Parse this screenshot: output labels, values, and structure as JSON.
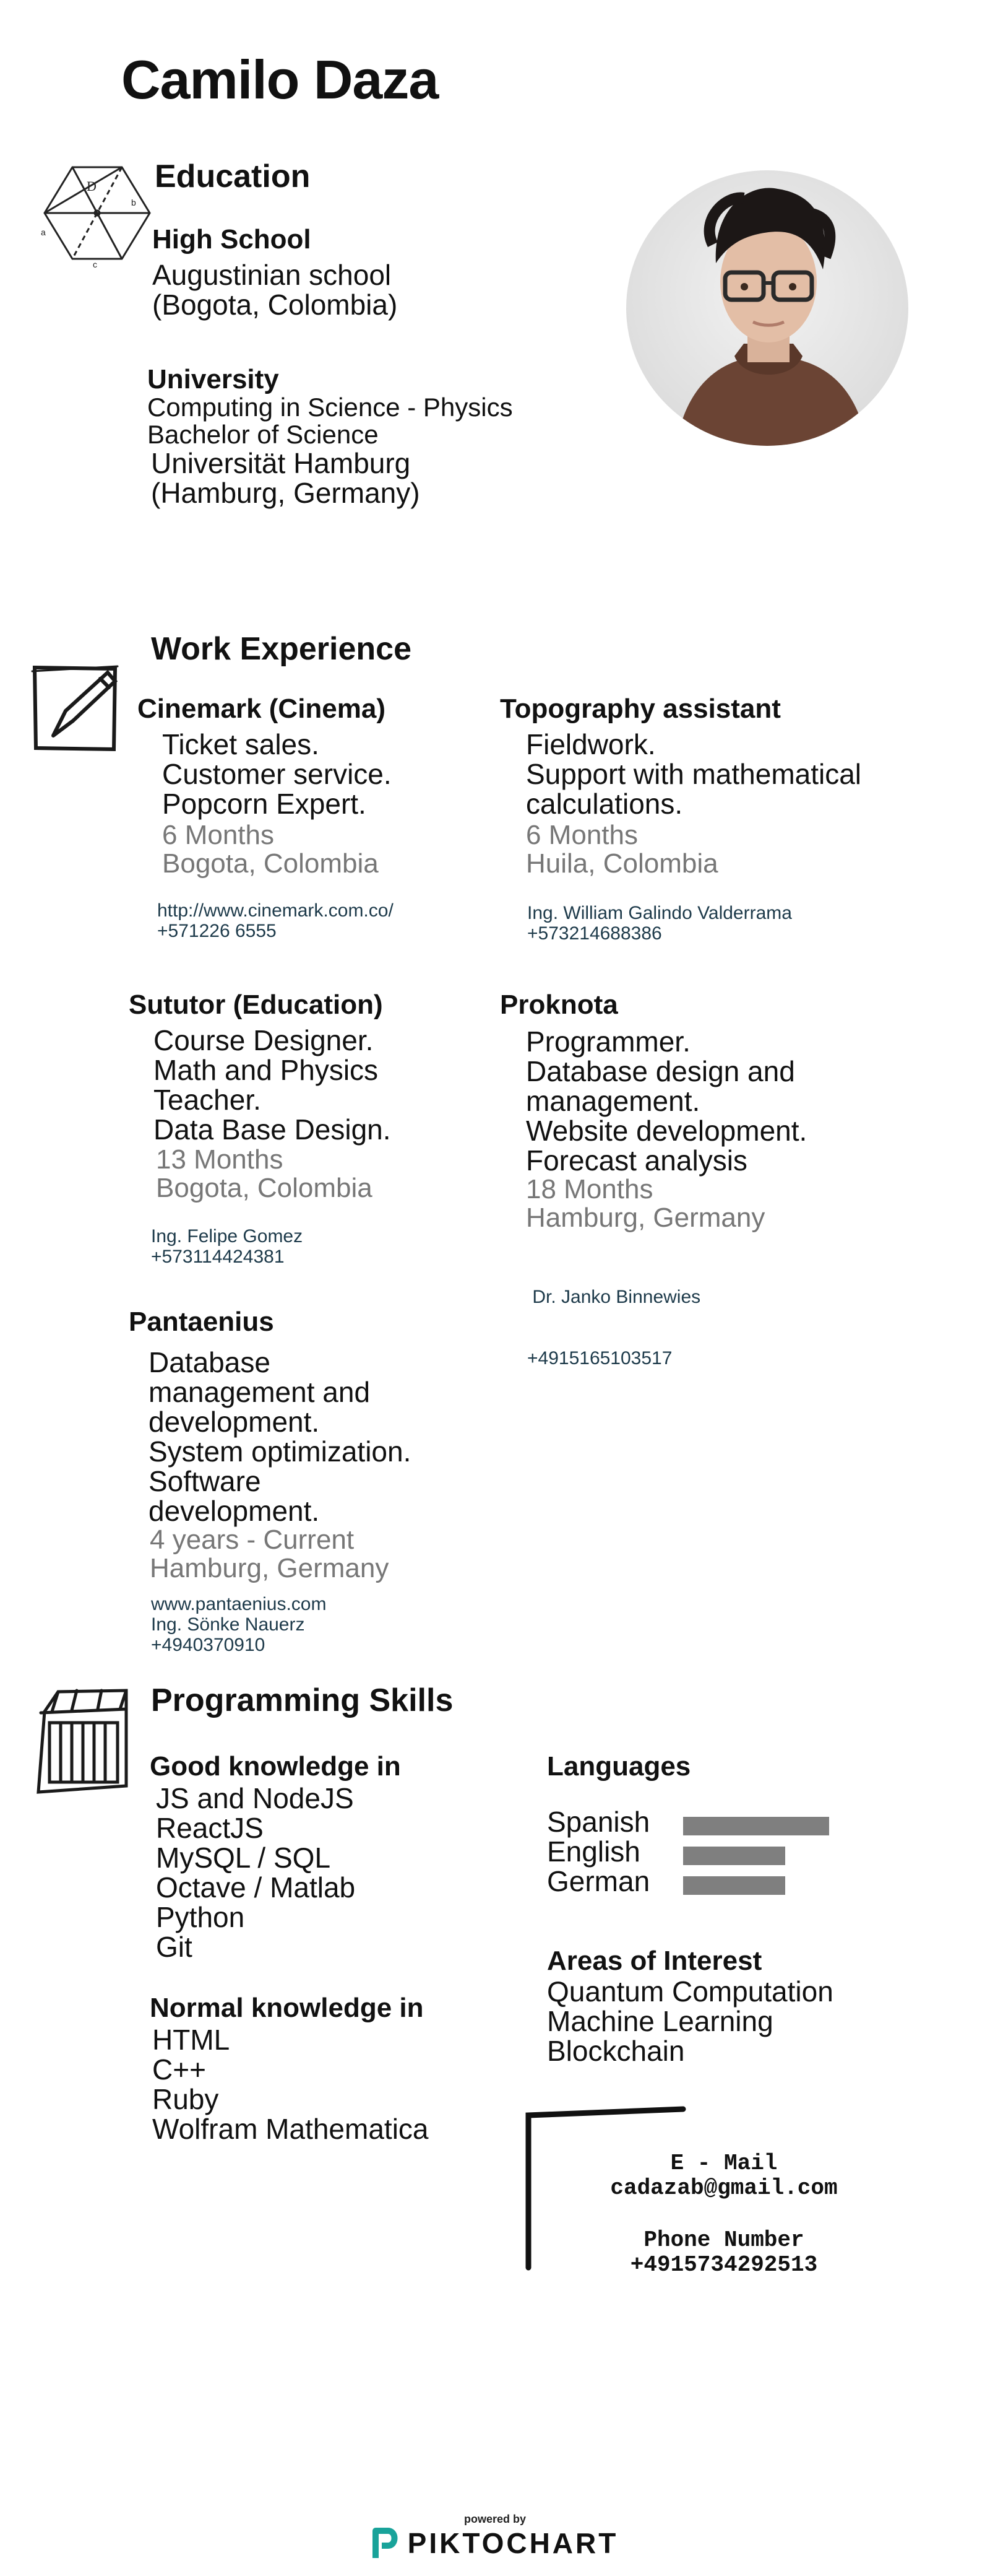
{
  "name": "Camilo Daza",
  "education": {
    "title": "Education",
    "high_school": {
      "label": "High School",
      "lines": [
        "Augustinian school",
        "(Bogota, Colombia)"
      ]
    },
    "university": {
      "label": "University",
      "lines_small": [
        "Computing in Science - Physics",
        "Bachelor of Science"
      ],
      "lines": [
        "Universität Hamburg",
        "(Hamburg, Germany)"
      ]
    }
  },
  "work": {
    "title": "Work Experience",
    "jobs": [
      {
        "company": "Cinemark (Cinema)",
        "duties": [
          "Ticket sales.",
          "Customer service.",
          "Popcorn Expert."
        ],
        "duration": "6 Months",
        "location": "Bogota, Colombia",
        "contact": [
          "http://www.cinemark.com.co/",
          "+571226 6555"
        ]
      },
      {
        "company": "Topography assistant",
        "duties": [
          "Fieldwork.",
          "Support with mathematical",
          "calculations."
        ],
        "duration": "6 Months",
        "location": "Huila, Colombia",
        "contact": [
          "Ing. William Galindo Valderrama",
          "+573214688386"
        ]
      },
      {
        "company": "Sututor (Education)",
        "duties": [
          "Course Designer.",
          "Math and Physics",
          "Teacher.",
          "Data Base Design."
        ],
        "duration": "13 Months",
        "location": "Bogota, Colombia",
        "contact": [
          "Ing. Felipe Gomez",
          "+573114424381"
        ]
      },
      {
        "company": "Proknota",
        "duties": [
          "Programmer.",
          "Database design and",
          "management.",
          "Website development.",
          "Forecast analysis"
        ],
        "duration": "18 Months",
        "location": "Hamburg, Germany",
        "contact": [
          " Dr. Janko Binnewies",
          "+4915165103517"
        ]
      },
      {
        "company": "Pantaenius",
        "duties": [
          "Database",
          "management and",
          "development.",
          "System optimization.",
          "Software",
          "development."
        ],
        "duration": "4 years - Current",
        "location": "Hamburg, Germany",
        "contact": [
          "www.pantaenius.com",
          "Ing. Sönke Nauerz",
          "+4940370910"
        ]
      }
    ]
  },
  "skills": {
    "title": "Programming Skills",
    "good": {
      "label": "Good knowledge in",
      "items": [
        "JS and NodeJS",
        "ReactJS",
        "MySQL / SQL",
        "Octave / Matlab",
        "Python",
        "Git"
      ]
    },
    "normal": {
      "label": "Normal knowledge in",
      "items": [
        "HTML",
        "C++",
        "Ruby",
        "Wolfram Mathematica"
      ]
    },
    "languages": {
      "label": "Languages",
      "items": [
        {
          "name": "Spanish",
          "level": 1.0
        },
        {
          "name": "English",
          "level": 0.7
        },
        {
          "name": "German",
          "level": 0.7
        }
      ]
    },
    "interests": {
      "label": "Areas of Interest",
      "items": [
        "Quantum Computation",
        "Machine Learning",
        "Blockchain"
      ]
    }
  },
  "contact_box": {
    "email_label": "E - Mail",
    "email": "cadazab@gmail.com",
    "phone_label": "Phone Number",
    "phone": "+4915734292513"
  },
  "footer": {
    "powered_by": "powered by",
    "brand": "PIKTOCHART",
    "brand_color": "#19a39a"
  },
  "icons": [
    "geometry-sketch-icon",
    "pencil-sketch-icon",
    "cabinet-sketch-icon",
    "piktochart-logo-icon"
  ]
}
